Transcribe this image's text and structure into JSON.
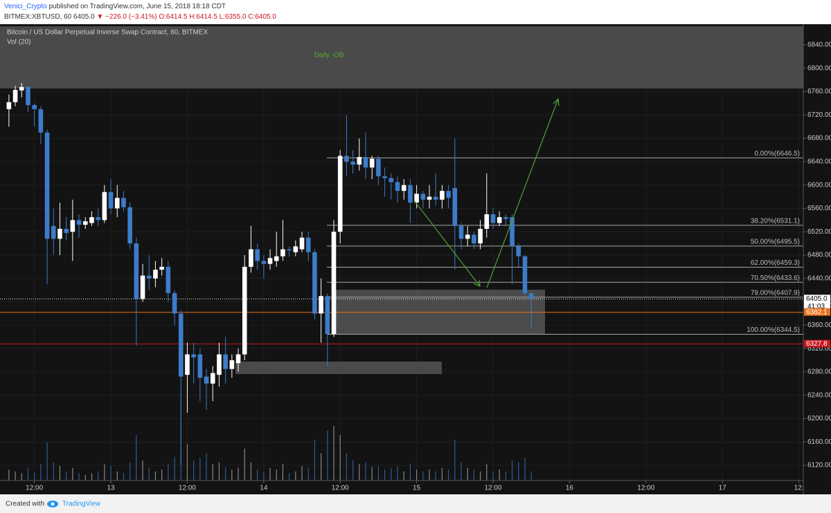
{
  "header": {
    "author": "Venici_Crypto",
    "published": "published on TradingView.com, June 15, 2018 18:18 CDT",
    "symbol": "BITMEX:XBTUSD, 60",
    "last": "6405.0",
    "change": "▼ −226.0 (−3.41%)",
    "ohlc": "O:6414.5 H:6414.5 L:6355.0 C:6405.0"
  },
  "chart_data": {
    "type": "candlestick",
    "title": "Bitcoin / US Dollar Perpetual Inverse Swap Contract, 60, BITMEX",
    "subtitle": "Vol (20)",
    "annotation": "Daily -OB",
    "up_color": "#ffffff",
    "down_color": "#3d7cc9",
    "open": [
      6730,
      6742,
      6762,
      6768,
      6737,
      6730,
      6690,
      6530,
      6508,
      6525,
      6520,
      6540,
      6532,
      6535,
      6545,
      6540,
      6588,
      6560,
      6578,
      6562,
      6500,
      6405,
      6445,
      6440,
      6455,
      6460,
      6415,
      6380,
      6275,
      6310,
      6310,
      6272,
      6260,
      6275,
      6310,
      6285,
      6295,
      6310,
      6460,
      6490,
      6470,
      6465,
      6470,
      6478,
      6490,
      6485,
      6490,
      6510,
      6485,
      6380,
      6410,
      6345,
      6520,
      6650,
      6640,
      6635,
      6648,
      6630,
      6645,
      6615,
      6612,
      6605,
      6590,
      6600,
      6570,
      6585,
      6575,
      6580,
      6575,
      6590,
      6595,
      6530,
      6508,
      6515,
      6500,
      6525,
      6550,
      6535,
      6545,
      6545,
      6495,
      6478,
      6414.5
    ],
    "high": [
      6755,
      6770,
      6775,
      6770,
      6740,
      6735,
      6695,
      6560,
      6570,
      6545,
      6575,
      6550,
      6545,
      6555,
      6560,
      6600,
      6610,
      6600,
      6590,
      6570,
      6510,
      6465,
      6480,
      6470,
      6475,
      6470,
      6420,
      6385,
      6330,
      6330,
      6320,
      6285,
      6290,
      6330,
      6340,
      6310,
      6320,
      6480,
      6530,
      6500,
      6480,
      6490,
      6520,
      6540,
      6495,
      6505,
      6520,
      6520,
      6490,
      6440,
      6415,
      6540,
      6660,
      6720,
      6660,
      6680,
      6690,
      6650,
      6650,
      6630,
      6620,
      6615,
      6610,
      6610,
      6600,
      6590,
      6600,
      6620,
      6600,
      6600,
      6680,
      6535,
      6530,
      6520,
      6540,
      6620,
      6560,
      6555,
      6550,
      6550,
      6500,
      6480,
      6414.5
    ],
    "low": [
      6700,
      6735,
      6750,
      6725,
      6700,
      6670,
      6430,
      6480,
      6480,
      6505,
      6470,
      6510,
      6525,
      6530,
      6530,
      6535,
      6550,
      6545,
      6555,
      6490,
      6325,
      6400,
      6420,
      6425,
      6445,
      6400,
      6360,
      6120,
      6210,
      6260,
      6230,
      6215,
      6230,
      6255,
      6260,
      6270,
      6280,
      6300,
      6450,
      6455,
      6440,
      6455,
      6460,
      6470,
      6478,
      6478,
      6485,
      6470,
      6370,
      6330,
      6290,
      6340,
      6500,
      6615,
      6620,
      6625,
      6610,
      6610,
      6600,
      6580,
      6575,
      6570,
      6575,
      6535,
      6560,
      6560,
      6560,
      6565,
      6560,
      6560,
      6455,
      6490,
      6495,
      6490,
      6490,
      6510,
      6525,
      6530,
      6530,
      6430,
      6460,
      6405,
      6355
    ],
    "close": [
      6742,
      6763,
      6768,
      6737,
      6730,
      6690,
      6508,
      6508,
      6525,
      6518,
      6540,
      6532,
      6538,
      6545,
      6540,
      6588,
      6560,
      6578,
      6562,
      6500,
      6405,
      6445,
      6440,
      6455,
      6460,
      6415,
      6380,
      6272,
      6310,
      6305,
      6270,
      6260,
      6278,
      6310,
      6285,
      6300,
      6310,
      6460,
      6490,
      6470,
      6465,
      6475,
      6478,
      6490,
      6488,
      6495,
      6510,
      6485,
      6380,
      6410,
      6345,
      6520,
      6650,
      6640,
      6635,
      6648,
      6630,
      6645,
      6615,
      6612,
      6605,
      6590,
      6600,
      6570,
      6585,
      6575,
      6580,
      6575,
      6590,
      6578,
      6530,
      6508,
      6515,
      6500,
      6525,
      6550,
      6535,
      6545,
      6542,
      6495,
      6478,
      6415,
      6405
    ],
    "volume": [
      12,
      10,
      8,
      14,
      9,
      18,
      42,
      20,
      16,
      10,
      14,
      8,
      6,
      8,
      10,
      18,
      16,
      10,
      8,
      20,
      50,
      22,
      14,
      10,
      12,
      18,
      26,
      95,
      40,
      22,
      25,
      30,
      18,
      20,
      15,
      12,
      14,
      35,
      20,
      12,
      10,
      14,
      12,
      18,
      8,
      10,
      16,
      14,
      45,
      30,
      55,
      60,
      50,
      30,
      22,
      18,
      20,
      15,
      16,
      12,
      14,
      16,
      10,
      18,
      12,
      10,
      12,
      10,
      14,
      12,
      45,
      20,
      14,
      12,
      10,
      18,
      10,
      12,
      10,
      22,
      20,
      25,
      10
    ],
    "xlim": [
      -1.4,
      124.7
    ],
    "xticks": [
      {
        "value": 4,
        "label": "12:00"
      },
      {
        "value": 16,
        "label": "13"
      },
      {
        "value": 28,
        "label": "12:00"
      },
      {
        "value": 40,
        "label": "14"
      },
      {
        "value": 52,
        "label": "12:00"
      },
      {
        "value": 64,
        "label": "15"
      },
      {
        "value": 76,
        "label": "12:00"
      },
      {
        "value": 88,
        "label": "16"
      },
      {
        "value": 100,
        "label": "12:00"
      },
      {
        "value": 112,
        "label": "17"
      },
      {
        "value": 124,
        "label": "12:"
      }
    ],
    "ylim": [
      6094,
      6875.5
    ],
    "yticks": [
      {
        "value": 6120,
        "label": "6120.00"
      },
      {
        "value": 6160,
        "label": "6160.00"
      },
      {
        "value": 6200,
        "label": "6200.00"
      },
      {
        "value": 6240,
        "label": "6240.00"
      },
      {
        "value": 6280,
        "label": "6280.00"
      },
      {
        "value": 6320,
        "label": "6320.00"
      },
      {
        "value": 6360,
        "label": "6360.00"
      },
      {
        "value": 6400,
        "label": "6400.00"
      },
      {
        "value": 6440,
        "label": "6440.00"
      },
      {
        "value": 6480,
        "label": "6480.00"
      },
      {
        "value": 6520,
        "label": "6520.00"
      },
      {
        "value": 6560,
        "label": "6560.00"
      },
      {
        "value": 6600,
        "label": "6600.00"
      },
      {
        "value": 6640,
        "label": "6640.00"
      },
      {
        "value": 6680,
        "label": "6680.00"
      },
      {
        "value": 6720,
        "label": "6720.00"
      },
      {
        "value": 6760,
        "label": "6760.00"
      },
      {
        "value": 6800,
        "label": "6800.00"
      },
      {
        "value": 6840,
        "label": "6840.00"
      }
    ],
    "grid": true,
    "fib_levels": [
      {
        "value": 6646.5,
        "label": "0.00%(6646.5)"
      },
      {
        "value": 6531.1,
        "label": "38.20%(6531.1)"
      },
      {
        "value": 6495.5,
        "label": "50.00%(6495.5)"
      },
      {
        "value": 6459.3,
        "label": "62.00%(6459.3)"
      },
      {
        "value": 6433.6,
        "label": "70.50%(6433.6)"
      },
      {
        "value": 6407.9,
        "label": "79.00%(6407.9)"
      },
      {
        "value": 6344.5,
        "label": "100.00%(6344.5)"
      }
    ],
    "price_lines": [
      {
        "value": 6405,
        "label": "6405.0",
        "countdown": "41:03",
        "color": "#ffffff"
      },
      {
        "value": 6382.1,
        "label": "6382.1",
        "color": "#e8731f"
      },
      {
        "value": 6327.8,
        "label": "6327.8",
        "color": "#c8161d"
      }
    ]
  },
  "footer": {
    "created": "Created with",
    "brand": "TradingView"
  }
}
